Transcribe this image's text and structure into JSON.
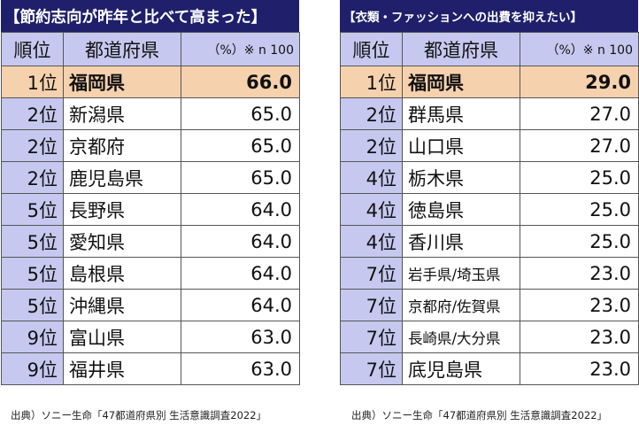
{
  "left": {
    "title": "【節約志向が昨年と比べて高まった】",
    "headers": {
      "rank": "順位",
      "pref": "都道府県",
      "value": "（%）※ n 100"
    },
    "rows": [
      {
        "rank": "1位",
        "pref": "福岡県",
        "value": "66.0"
      },
      {
        "rank": "2位",
        "pref": "新潟県",
        "value": "65.0"
      },
      {
        "rank": "2位",
        "pref": "京都府",
        "value": "65.0"
      },
      {
        "rank": "2位",
        "pref": "鹿児島県",
        "value": "65.0"
      },
      {
        "rank": "5位",
        "pref": "長野県",
        "value": "64.0"
      },
      {
        "rank": "5位",
        "pref": "愛知県",
        "value": "64.0"
      },
      {
        "rank": "5位",
        "pref": "島根県",
        "value": "64.0"
      },
      {
        "rank": "5位",
        "pref": "沖縄県",
        "value": "64.0"
      },
      {
        "rank": "9位",
        "pref": "富山県",
        "value": "63.0"
      },
      {
        "rank": "9位",
        "pref": "福井県",
        "value": "63.0"
      }
    ],
    "source": "出典）ソニー生命「47都道府県別 生活意識調査2022」"
  },
  "right": {
    "title": "【衣類・ファッションへの出費を抑えたい】",
    "headers": {
      "rank": "順位",
      "pref": "都道府県",
      "value": "（%）※ n 100"
    },
    "rows": [
      {
        "rank": "1位",
        "pref": "福岡県",
        "value": "29.0"
      },
      {
        "rank": "2位",
        "pref": "群馬県",
        "value": "27.0"
      },
      {
        "rank": "2位",
        "pref": "山口県",
        "value": "27.0"
      },
      {
        "rank": "4位",
        "pref": "栃木県",
        "value": "25.0"
      },
      {
        "rank": "4位",
        "pref": "徳島県",
        "value": "25.0"
      },
      {
        "rank": "4位",
        "pref": "香川県",
        "value": "25.0"
      },
      {
        "rank": "7位",
        "pref": "岩手県/埼玉県",
        "value": "23.0"
      },
      {
        "rank": "7位",
        "pref": "京都府/佐賀県",
        "value": "23.0"
      },
      {
        "rank": "7位",
        "pref": "長崎県/大分県",
        "value": "23.0"
      },
      {
        "rank": "7位",
        "pref": "底児島県",
        "value": "23.0"
      }
    ],
    "source": "出典）ソニー生命「47都道府県別 生活意識調査2022」"
  },
  "colors": {
    "title_bg": "#1f1f6b",
    "header_bg": "#c7c8ef",
    "highlight_bg": "#f6d1ad"
  }
}
